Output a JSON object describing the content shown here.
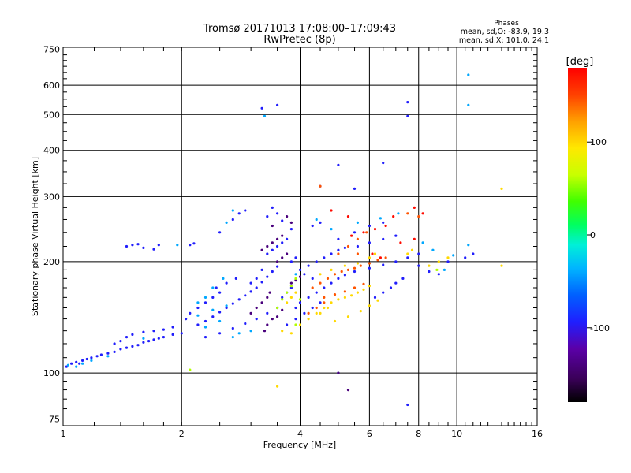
{
  "chart_data": {
    "type": "scatter",
    "title": "Tromsø 20171013 17:08:00–17:09:43",
    "subtitle": "RwPretec (8p)",
    "xlabel": "Frequency [MHz]",
    "ylabel": "Stationary phase Virtual Height [km]",
    "x_scale": "log",
    "y_scale": "log",
    "xlim": [
      1,
      16
    ],
    "ylim": [
      72,
      760
    ],
    "x_ticks": [
      1,
      2,
      4,
      6,
      8,
      10,
      16
    ],
    "x_tick_labels": [
      "1",
      "2",
      "4",
      "6",
      "8",
      "10",
      "16"
    ],
    "y_ticks": [
      75,
      100,
      200,
      300,
      400,
      500,
      600,
      750
    ],
    "y_tick_labels": [
      "75",
      "100",
      "200",
      "300",
      "400",
      "500",
      "600",
      "750"
    ],
    "grid": true,
    "stats": {
      "heading": "Phases",
      "line_o": "mean, sd,O: -83.9, 19.3",
      "line_x": "mean, sd,X: 101.0, 24.1"
    },
    "colorbar": {
      "label": "[deg]",
      "range": [
        -180,
        180
      ],
      "ticks": [
        100,
        0,
        -100
      ],
      "tick_labels": [
        "100",
        "0",
        "-100"
      ],
      "colormap": "rainbow (black-purple-blue-cyan-green-yellow-orange-red)"
    },
    "series": [
      {
        "phase_deg": -95,
        "points": [
          [
            1.02,
            104
          ],
          [
            1.05,
            106
          ],
          [
            1.08,
            107
          ],
          [
            1.1,
            106
          ],
          [
            1.12,
            108
          ],
          [
            1.15,
            109
          ],
          [
            1.18,
            110
          ],
          [
            1.22,
            111
          ],
          [
            1.25,
            112
          ],
          [
            1.3,
            113
          ],
          [
            1.35,
            114
          ],
          [
            1.4,
            116
          ],
          [
            1.45,
            117
          ],
          [
            1.5,
            118
          ],
          [
            1.55,
            119
          ],
          [
            1.6,
            121
          ],
          [
            1.65,
            122
          ],
          [
            1.7,
            123
          ],
          [
            1.75,
            124
          ],
          [
            1.8,
            125
          ],
          [
            1.9,
            127
          ],
          [
            2.0,
            128
          ],
          [
            1.35,
            120
          ],
          [
            1.4,
            122
          ],
          [
            1.45,
            125
          ],
          [
            1.5,
            127
          ],
          [
            1.6,
            129
          ],
          [
            1.7,
            130
          ],
          [
            1.8,
            131
          ],
          [
            1.9,
            133
          ],
          [
            2.05,
            140
          ],
          [
            2.1,
            145
          ],
          [
            2.2,
            150
          ],
          [
            2.3,
            155
          ],
          [
            2.4,
            160
          ],
          [
            2.5,
            165
          ],
          [
            2.2,
            135
          ],
          [
            2.3,
            138
          ],
          [
            2.4,
            142
          ],
          [
            2.5,
            146
          ],
          [
            2.6,
            150
          ],
          [
            2.7,
            154
          ],
          [
            2.8,
            158
          ],
          [
            2.9,
            162
          ],
          [
            3.0,
            166
          ],
          [
            3.1,
            170
          ],
          [
            3.2,
            176
          ],
          [
            3.3,
            182
          ],
          [
            3.4,
            188
          ],
          [
            3.5,
            194
          ],
          [
            3.3,
            210
          ],
          [
            3.4,
            215
          ],
          [
            3.5,
            220
          ],
          [
            3.6,
            225
          ],
          [
            3.7,
            230
          ],
          [
            3.8,
            200
          ],
          [
            3.9,
            205
          ],
          [
            4.0,
            190
          ],
          [
            4.2,
            195
          ],
          [
            4.4,
            200
          ],
          [
            4.6,
            205
          ],
          [
            4.8,
            210
          ],
          [
            5.0,
            215
          ],
          [
            5.2,
            218
          ],
          [
            5.6,
            220
          ],
          [
            6.0,
            225
          ],
          [
            6.5,
            230
          ],
          [
            7.0,
            235
          ],
          [
            5.0,
            230
          ],
          [
            5.5,
            240
          ],
          [
            6.0,
            250
          ],
          [
            6.5,
            255
          ],
          [
            3.6,
            160
          ],
          [
            3.7,
            165
          ],
          [
            3.8,
            170
          ],
          [
            3.9,
            150
          ],
          [
            4.0,
            155
          ],
          [
            4.2,
            160
          ],
          [
            4.4,
            165
          ],
          [
            4.6,
            170
          ],
          [
            4.8,
            175
          ],
          [
            5.0,
            180
          ],
          [
            5.2,
            184
          ],
          [
            5.5,
            188
          ],
          [
            6.0,
            192
          ],
          [
            6.5,
            196
          ],
          [
            7.0,
            200
          ],
          [
            7.5,
            205
          ],
          [
            8.0,
            210
          ],
          [
            6.2,
            160
          ],
          [
            6.5,
            165
          ],
          [
            6.8,
            170
          ],
          [
            7.0,
            175
          ],
          [
            7.3,
            180
          ],
          [
            3.3,
            265
          ],
          [
            3.5,
            270
          ],
          [
            3.4,
            280
          ],
          [
            3.6,
            258
          ],
          [
            3.8,
            245
          ],
          [
            4.3,
            250
          ],
          [
            4.5,
            255
          ],
          [
            2.3,
            125
          ],
          [
            2.5,
            128
          ],
          [
            2.7,
            132
          ],
          [
            2.9,
            136
          ],
          [
            3.1,
            140
          ],
          [
            3.3,
            145
          ],
          [
            3.5,
            150
          ],
          [
            3.7,
            135
          ],
          [
            3.9,
            140
          ],
          [
            4.1,
            145
          ],
          [
            4.3,
            150
          ],
          [
            4.5,
            155
          ],
          [
            1.45,
            220
          ],
          [
            1.5,
            222
          ],
          [
            1.55,
            223
          ],
          [
            1.6,
            218
          ],
          [
            1.7,
            216
          ],
          [
            1.75,
            222
          ],
          [
            2.1,
            222
          ],
          [
            2.15,
            224
          ],
          [
            2.5,
            240
          ],
          [
            2.7,
            260
          ],
          [
            2.8,
            270
          ],
          [
            2.9,
            275
          ],
          [
            3.2,
            520
          ],
          [
            3.5,
            530
          ],
          [
            7.5,
            540
          ],
          [
            7.5,
            495
          ],
          [
            6.5,
            370
          ],
          [
            5.0,
            365
          ],
          [
            9.5,
            200
          ],
          [
            10.5,
            205
          ],
          [
            11.0,
            210
          ],
          [
            3.1,
            180
          ],
          [
            3.0,
            175
          ],
          [
            3.2,
            190
          ],
          [
            4.1,
            185
          ],
          [
            4.3,
            180
          ],
          [
            7.5,
            82
          ],
          [
            5.0,
            100
          ],
          [
            4.5,
            320
          ],
          [
            5.5,
            315
          ],
          [
            8.0,
            195
          ],
          [
            8.5,
            188
          ],
          [
            9.0,
            185
          ],
          [
            2.45,
            170
          ],
          [
            2.6,
            175
          ],
          [
            2.75,
            180
          ]
        ]
      },
      {
        "phase_deg": -140,
        "points": [
          [
            3.0,
            145
          ],
          [
            3.1,
            150
          ],
          [
            3.2,
            155
          ],
          [
            3.3,
            160
          ],
          [
            3.35,
            165
          ],
          [
            3.4,
            140
          ],
          [
            3.5,
            142
          ],
          [
            3.6,
            148
          ],
          [
            3.2,
            215
          ],
          [
            3.3,
            220
          ],
          [
            3.4,
            225
          ],
          [
            3.5,
            230
          ],
          [
            3.6,
            235
          ],
          [
            3.5,
            200
          ],
          [
            3.6,
            205
          ],
          [
            3.7,
            210
          ],
          [
            3.8,
            175
          ],
          [
            3.9,
            178
          ],
          [
            4.0,
            182
          ],
          [
            3.25,
            130
          ],
          [
            3.3,
            135
          ],
          [
            3.7,
            265
          ],
          [
            3.8,
            255
          ],
          [
            3.4,
            250
          ],
          [
            5.0,
            100
          ],
          [
            5.3,
            90
          ]
        ]
      },
      {
        "phase_deg": -40,
        "points": [
          [
            1.03,
            105
          ],
          [
            1.08,
            104
          ],
          [
            1.12,
            106
          ],
          [
            1.18,
            108
          ],
          [
            1.3,
            111
          ],
          [
            1.6,
            124
          ],
          [
            2.2,
            143
          ],
          [
            2.3,
            133
          ],
          [
            2.4,
            148
          ],
          [
            2.5,
            138
          ],
          [
            2.6,
            152
          ],
          [
            2.7,
            125
          ],
          [
            2.8,
            128
          ],
          [
            3.0,
            130
          ],
          [
            2.2,
            155
          ],
          [
            2.3,
            160
          ],
          [
            2.4,
            170
          ],
          [
            2.55,
            180
          ],
          [
            1.95,
            222
          ],
          [
            2.6,
            255
          ],
          [
            2.7,
            275
          ],
          [
            3.9,
            185
          ],
          [
            4.4,
            260
          ],
          [
            4.8,
            245
          ],
          [
            5.6,
            255
          ],
          [
            6.4,
            262
          ],
          [
            7.1,
            270
          ],
          [
            8.2,
            225
          ],
          [
            8.7,
            215
          ],
          [
            9.8,
            208
          ],
          [
            10.7,
            222
          ],
          [
            3.25,
            495
          ],
          [
            10.7,
            530
          ],
          [
            10.7,
            640
          ],
          [
            9.3,
            190
          ]
        ]
      },
      {
        "phase_deg": 100,
        "points": [
          [
            3.7,
            155
          ],
          [
            3.8,
            160
          ],
          [
            3.9,
            165
          ],
          [
            4.0,
            135
          ],
          [
            4.2,
            140
          ],
          [
            4.4,
            145
          ],
          [
            4.6,
            150
          ],
          [
            4.8,
            155
          ],
          [
            5.0,
            158
          ],
          [
            5.2,
            160
          ],
          [
            5.4,
            162
          ],
          [
            5.6,
            165
          ],
          [
            5.8,
            168
          ],
          [
            6.0,
            172
          ],
          [
            4.5,
            185
          ],
          [
            4.8,
            190
          ],
          [
            5.2,
            195
          ],
          [
            5.6,
            198
          ],
          [
            6.0,
            205
          ],
          [
            6.2,
            210
          ],
          [
            4.9,
            138
          ],
          [
            5.3,
            142
          ],
          [
            5.7,
            147
          ],
          [
            6.0,
            152
          ],
          [
            6.3,
            157
          ],
          [
            3.6,
            130
          ],
          [
            3.8,
            128
          ],
          [
            8.5,
            195
          ],
          [
            9.0,
            200
          ],
          [
            9.5,
            205
          ],
          [
            7.5,
            210
          ],
          [
            7.7,
            215
          ],
          [
            13.0,
            195
          ],
          [
            13.0,
            315
          ],
          [
            3.5,
            92
          ],
          [
            4.5,
            145
          ],
          [
            4.7,
            150
          ]
        ]
      },
      {
        "phase_deg": 145,
        "points": [
          [
            4.3,
            170
          ],
          [
            4.5,
            175
          ],
          [
            4.7,
            180
          ],
          [
            4.9,
            185
          ],
          [
            5.1,
            188
          ],
          [
            5.3,
            190
          ],
          [
            5.5,
            192
          ],
          [
            5.7,
            195
          ],
          [
            6.0,
            198
          ],
          [
            6.3,
            202
          ],
          [
            6.6,
            205
          ],
          [
            4.6,
            160
          ],
          [
            4.9,
            163
          ],
          [
            5.2,
            166
          ],
          [
            5.5,
            170
          ],
          [
            5.8,
            174
          ],
          [
            4.2,
            145
          ],
          [
            4.4,
            150
          ],
          [
            4.6,
            155
          ],
          [
            5.0,
            210
          ],
          [
            5.3,
            220
          ],
          [
            5.6,
            230
          ],
          [
            5.9,
            240
          ],
          [
            7.5,
            270
          ],
          [
            8.0,
            265
          ],
          [
            4.5,
            320
          ],
          [
            5.6,
            210
          ]
        ]
      },
      {
        "phase_deg": 175,
        "points": [
          [
            5.4,
            235
          ],
          [
            5.8,
            240
          ],
          [
            6.2,
            245
          ],
          [
            6.6,
            250
          ],
          [
            7.2,
            225
          ],
          [
            7.8,
            230
          ],
          [
            8.2,
            270
          ],
          [
            4.8,
            275
          ],
          [
            5.3,
            265
          ],
          [
            6.9,
            265
          ],
          [
            7.8,
            280
          ],
          [
            6.1,
            210
          ],
          [
            6.4,
            205
          ]
        ]
      },
      {
        "phase_deg": 60,
        "points": [
          [
            3.5,
            150
          ],
          [
            3.6,
            158
          ],
          [
            3.7,
            165
          ],
          [
            3.8,
            172
          ],
          [
            3.9,
            180
          ],
          [
            4.0,
            158
          ],
          [
            2.1,
            102
          ],
          [
            3.9,
            135
          ],
          [
            8.9,
            190
          ]
        ]
      }
    ]
  }
}
